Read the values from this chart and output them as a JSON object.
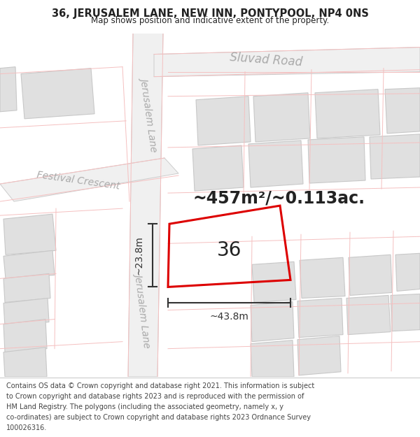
{
  "title": "36, JERUSALEM LANE, NEW INN, PONTYPOOL, NP4 0NS",
  "subtitle": "Map shows position and indicative extent of the property.",
  "area_text": "~457m²/~0.113ac.",
  "label_36": "36",
  "dim_width": "~43.8m",
  "dim_height": "~23.8m",
  "map_bg": "#ffffff",
  "building_fill": "#e0e0e0",
  "building_stroke": "#c8c8c8",
  "road_fill": "#f0f0f0",
  "road_stroke": "#cccccc",
  "plot_stroke": "#dd0000",
  "dim_line_color": "#333333",
  "text_color": "#222222",
  "road_text_color": "#aaaaaa",
  "light_red": "#f5c0c0",
  "title_fontsize": 10.5,
  "subtitle_fontsize": 8.5,
  "footer_fontsize": 7.0,
  "area_fontsize": 17,
  "label_fontsize": 20,
  "dim_fontsize": 10,
  "road_fontsize": 10,
  "footer_lines": [
    "Contains OS data © Crown copyright and database right 2021. This information is subject",
    "to Crown copyright and database rights 2023 and is reproduced with the permission of",
    "HM Land Registry. The polygons (including the associated geometry, namely x, y",
    "co-ordinates) are subject to Crown copyright and database rights 2023 Ordnance Survey",
    "100026316."
  ]
}
